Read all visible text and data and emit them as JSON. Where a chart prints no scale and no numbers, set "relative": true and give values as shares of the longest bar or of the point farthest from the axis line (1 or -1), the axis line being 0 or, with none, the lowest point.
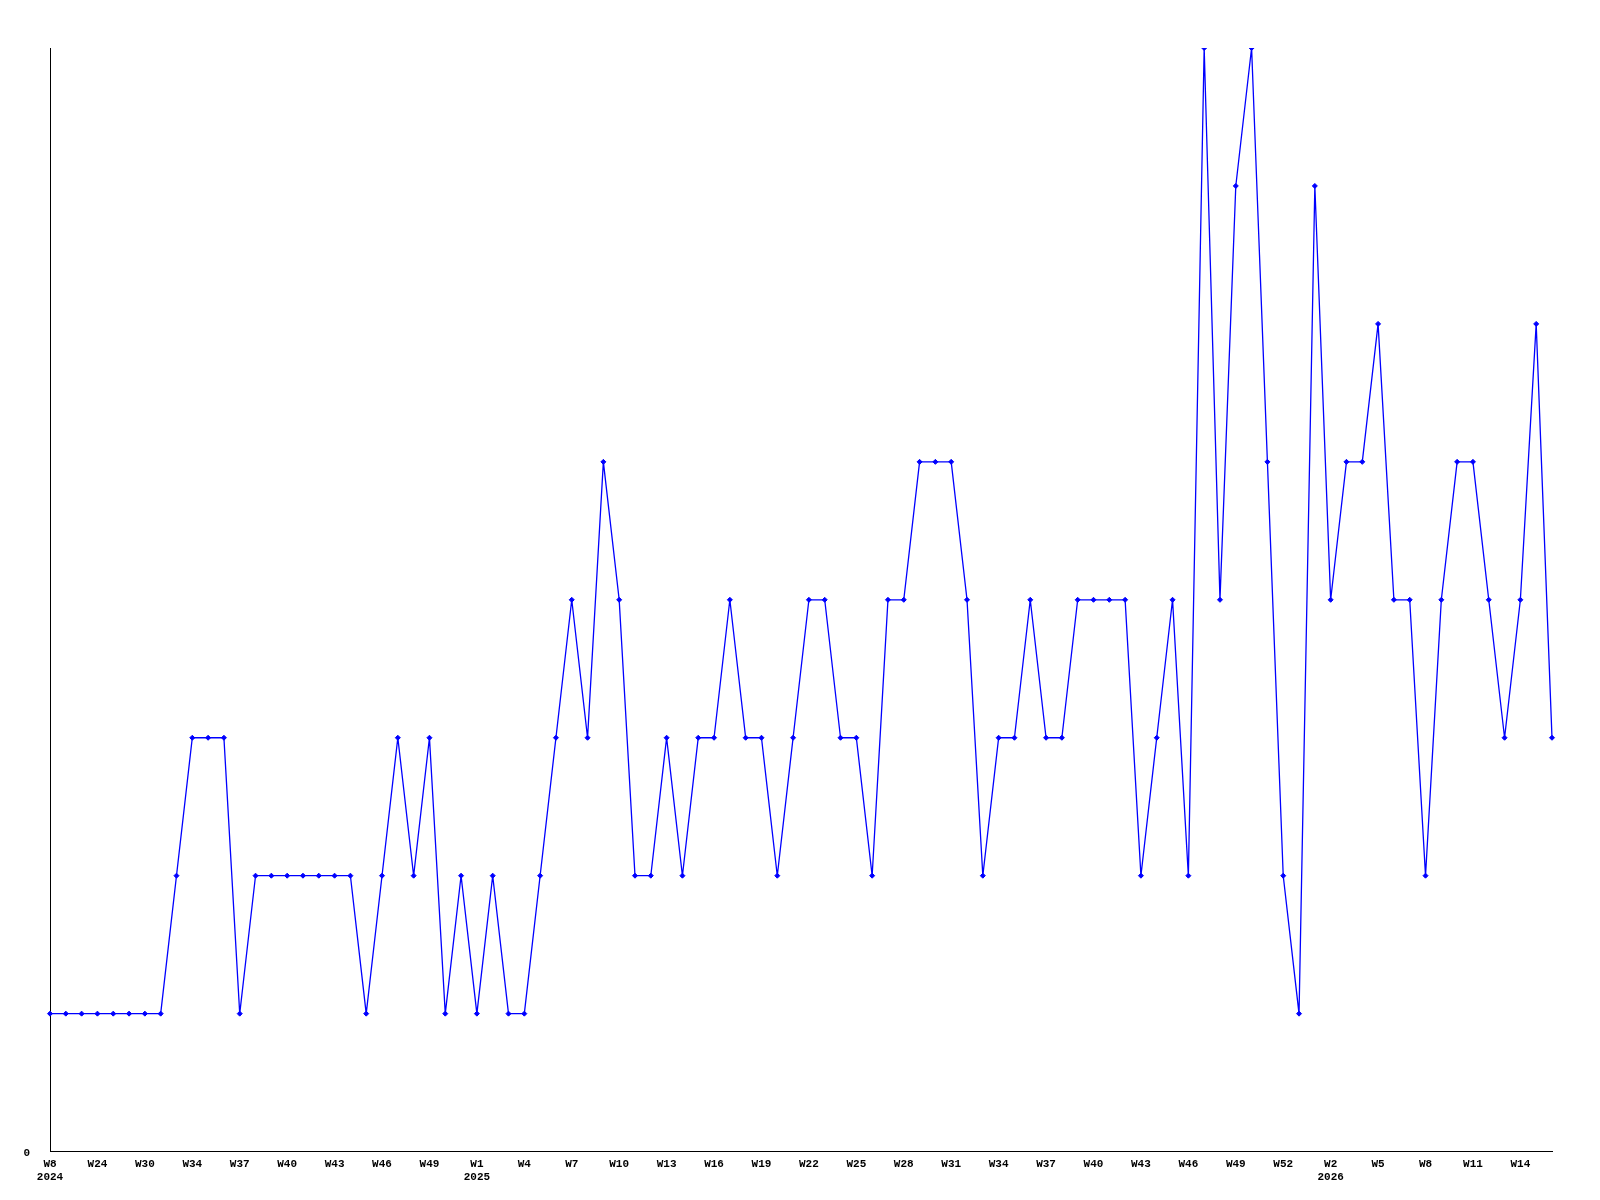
{
  "chart_data": {
    "type": "line",
    "relative": true,
    "categories": [
      "W8\n2024",
      null,
      null,
      "W24",
      null,
      null,
      "W30",
      null,
      null,
      "W34",
      null,
      null,
      "W37",
      null,
      null,
      "W40",
      null,
      null,
      "W43",
      null,
      null,
      "W46",
      null,
      null,
      "W49",
      null,
      null,
      "W1\n2025",
      null,
      null,
      "W4",
      null,
      null,
      "W7",
      null,
      null,
      "W10",
      null,
      null,
      "W13",
      null,
      null,
      "W16",
      null,
      null,
      "W19",
      null,
      null,
      "W22",
      null,
      null,
      "W25",
      null,
      null,
      "W28",
      null,
      null,
      "W31",
      null,
      null,
      "W34",
      null,
      null,
      "W37",
      null,
      null,
      "W40",
      null,
      null,
      "W43",
      null,
      null,
      "W46",
      null,
      null,
      "W49",
      null,
      null,
      "W52",
      null,
      null,
      "W2\n2026",
      null,
      null,
      "W5",
      null,
      null,
      "W8",
      null,
      null,
      "W11",
      null,
      null,
      "W14",
      null,
      null
    ],
    "series": [
      {
        "color": "#0000ff",
        "values": [
          0.125,
          0.125,
          0.125,
          0.125,
          0.125,
          0.125,
          0.125,
          0.125,
          0.25,
          0.375,
          0.375,
          0.375,
          0.125,
          0.25,
          0.25,
          0.25,
          0.25,
          0.25,
          0.25,
          0.25,
          0.125,
          0.25,
          0.375,
          0.25,
          0.375,
          0.125,
          0.25,
          0.125,
          0.25,
          0.125,
          0.125,
          0.25,
          0.375,
          0.5,
          0.375,
          0.625,
          0.5,
          0.25,
          0.25,
          0.375,
          0.25,
          0.375,
          0.375,
          0.5,
          0.375,
          0.375,
          0.25,
          0.375,
          0.5,
          0.5,
          0.375,
          0.375,
          0.25,
          0.5,
          0.5,
          0.625,
          0.625,
          0.625,
          0.5,
          0.25,
          0.375,
          0.375,
          0.5,
          0.375,
          0.375,
          0.5,
          0.5,
          0.5,
          0.5,
          0.25,
          0.375,
          0.5,
          0.25,
          1,
          0.5,
          0.875,
          1,
          0.625,
          0.25,
          0.125,
          0.875,
          0.5,
          0.625,
          0.625,
          0.75,
          0.5,
          0.5,
          0.25,
          0.5,
          0.625,
          0.625,
          0.5,
          0.375,
          0.5,
          0.75,
          0.375
        ]
      }
    ],
    "annotations": [
      "0"
    ],
    "marker": "diamond",
    "line_style": "solid",
    "grid": false,
    "legend": false
  }
}
